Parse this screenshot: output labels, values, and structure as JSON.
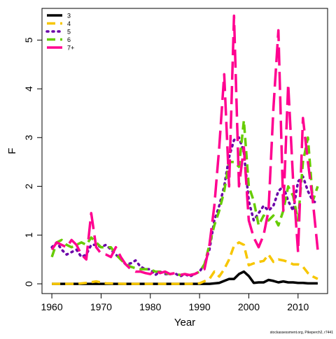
{
  "chart_data": {
    "type": "line",
    "xlabel": "Year",
    "ylabel": "F",
    "xlim": [
      1958,
      2016
    ],
    "ylim": [
      -0.2,
      5.65
    ],
    "xticks": [
      1960,
      1970,
      1980,
      1990,
      2000,
      2010
    ],
    "yticks": [
      0,
      1,
      2,
      3,
      4,
      5
    ],
    "grid": false,
    "legend_position": "top-left",
    "credit": "stockassessment.org, Pikeperch2, r7441",
    "series": [
      {
        "name": "3",
        "color": "#000000",
        "dash": "solid",
        "x": [
          1960,
          1965,
          1970,
          1975,
          1980,
          1985,
          1990,
          1992,
          1994,
          1995,
          1996,
          1997,
          1998,
          1999,
          2000,
          2001,
          2002,
          2003,
          2004,
          2005,
          2006,
          2007,
          2008,
          2009,
          2010,
          2011,
          2012,
          2013,
          2014
        ],
        "y": [
          0.0,
          0.0,
          0.0,
          0.0,
          0.0,
          0.0,
          0.0,
          0.0,
          0.02,
          0.06,
          0.1,
          0.1,
          0.2,
          0.25,
          0.16,
          0.02,
          0.03,
          0.03,
          0.08,
          0.06,
          0.03,
          0.05,
          0.03,
          0.03,
          0.02,
          0.02,
          0.01,
          0.01,
          0.01
        ]
      },
      {
        "name": "4",
        "color": "#f7c600",
        "dash": "dash",
        "x": [
          1960,
          1965,
          1967,
          1969,
          1971,
          1975,
          1980,
          1985,
          1988,
          1990,
          1992,
          1993,
          1994,
          1995,
          1996,
          1997,
          1998,
          1999,
          2000,
          2001,
          2002,
          2003,
          2004,
          2005,
          2006,
          2007,
          2008,
          2009,
          2010,
          2011,
          2012,
          2013,
          2014
        ],
        "y": [
          0.0,
          0.0,
          0.02,
          0.05,
          0.01,
          0.0,
          0.0,
          0.0,
          0.0,
          0.01,
          0.1,
          0.25,
          0.15,
          0.3,
          0.5,
          0.78,
          0.85,
          0.8,
          0.38,
          0.42,
          0.45,
          0.47,
          0.6,
          0.45,
          0.5,
          0.48,
          0.45,
          0.4,
          0.4,
          0.35,
          0.22,
          0.15,
          0.1
        ]
      },
      {
        "name": "5",
        "color": "#6a00a8",
        "dash": "dot",
        "x": [
          1960,
          1961,
          1962,
          1963,
          1964,
          1965,
          1966,
          1967,
          1968,
          1969,
          1970,
          1971,
          1972,
          1973,
          1974,
          1975,
          1976,
          1977,
          1978,
          1979,
          1980,
          1981,
          1982,
          1983,
          1984,
          1985,
          1986,
          1987,
          1988,
          1989,
          1990,
          1991,
          1992,
          1993,
          1994,
          1995,
          1996,
          1997,
          1998,
          1999,
          2000,
          2001,
          2002,
          2003,
          2004,
          2005,
          2006,
          2007,
          2008,
          2009,
          2010,
          2011,
          2012,
          2013,
          2014
        ],
        "y": [
          0.75,
          0.85,
          0.7,
          0.6,
          0.65,
          0.7,
          0.55,
          0.6,
          0.8,
          0.8,
          0.75,
          0.8,
          0.7,
          0.6,
          0.5,
          0.4,
          0.42,
          0.48,
          0.35,
          0.3,
          0.3,
          0.18,
          0.25,
          0.2,
          0.2,
          0.22,
          0.15,
          0.2,
          0.15,
          0.2,
          0.25,
          0.4,
          0.7,
          1.3,
          1.6,
          2.0,
          2.6,
          2.95,
          3.0,
          2.7,
          1.7,
          1.3,
          1.45,
          1.6,
          1.5,
          1.6,
          1.9,
          2.0,
          1.7,
          1.5,
          2.1,
          2.2,
          1.9,
          1.7,
          1.65
        ]
      },
      {
        "name": "6",
        "color": "#66cc00",
        "dash": "dash",
        "x": [
          1960,
          1961,
          1962,
          1963,
          1964,
          1965,
          1966,
          1967,
          1968,
          1969,
          1970,
          1971,
          1972,
          1973,
          1974,
          1975,
          1976,
          1977,
          1978,
          1979,
          1980,
          1981,
          1982,
          1983,
          1984,
          1985,
          1986,
          1987,
          1988,
          1989,
          1990,
          1991,
          1992,
          1993,
          1994,
          1995,
          1996,
          1997,
          1998,
          1999,
          2000,
          2001,
          2002,
          2003,
          2004,
          2005,
          2006,
          2007,
          2008,
          2009,
          2010,
          2011,
          2012,
          2013,
          2014
        ],
        "y": [
          0.55,
          0.85,
          0.9,
          0.8,
          0.75,
          0.8,
          0.85,
          0.8,
          0.95,
          0.85,
          0.75,
          0.75,
          0.75,
          0.6,
          0.5,
          0.4,
          0.35,
          0.32,
          0.3,
          0.3,
          0.3,
          0.25,
          0.25,
          0.22,
          0.2,
          0.22,
          0.18,
          0.2,
          0.18,
          0.2,
          0.25,
          0.4,
          0.8,
          1.2,
          1.5,
          1.9,
          2.5,
          2.5,
          2.4,
          3.35,
          2.0,
          1.7,
          1.2,
          1.4,
          1.3,
          1.4,
          1.2,
          1.5,
          2.0,
          1.8,
          1.3,
          2.5,
          3.0,
          1.7,
          2.0
        ]
      },
      {
        "name": "7+",
        "color": "#ff0090",
        "dash": "longdash",
        "x": [
          1960,
          1961,
          1962,
          1963,
          1964,
          1965,
          1966,
          1967,
          1968,
          1969,
          1970,
          1971,
          1972,
          1973,
          1974,
          1975,
          1976,
          1977,
          1978,
          1979,
          1980,
          1981,
          1982,
          1983,
          1984,
          1985,
          1986,
          1987,
          1988,
          1989,
          1990,
          1991,
          1992,
          1993,
          1994,
          1995,
          1996,
          1997,
          1998,
          1999,
          2000,
          2001,
          2002,
          2003,
          2004,
          2005,
          2006,
          2007,
          2008,
          2009,
          2010,
          2011,
          2012,
          2013,
          2014
        ],
        "y": [
          0.7,
          0.85,
          0.8,
          0.75,
          0.9,
          0.8,
          0.6,
          0.5,
          1.45,
          0.75,
          0.62,
          0.6,
          0.55,
          0.75,
          0.55,
          0.4,
          0.3,
          0.25,
          0.25,
          0.22,
          0.2,
          0.28,
          0.22,
          0.25,
          0.2,
          0.22,
          0.18,
          0.2,
          0.18,
          0.2,
          0.25,
          0.3,
          0.8,
          1.6,
          2.8,
          4.3,
          2.0,
          5.5,
          2.0,
          2.8,
          1.3,
          0.95,
          0.75,
          1.0,
          1.5,
          3.6,
          5.2,
          1.5,
          4.1,
          2.1,
          0.65,
          3.4,
          2.5,
          1.7,
          0.7
        ]
      }
    ]
  }
}
